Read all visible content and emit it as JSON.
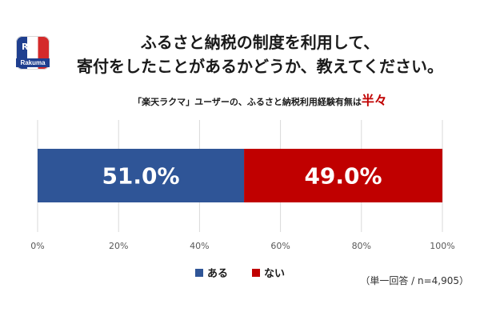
{
  "logo": {
    "letter": "R",
    "brand": "Rakuma"
  },
  "title_line1": "ふるさと納税の制度を利用して、",
  "title_line2": "寄付をしたことがあるかどうか、教えてください。",
  "subtitle_text": "「楽天ラクマ」ユーザーの、ふるさと納税利用経験有無は",
  "subtitle_highlight": "半々",
  "footnote": "（単一回答 / n=4,905）",
  "colors": {
    "aru": "#2f5597",
    "nai": "#c00000"
  },
  "chart_data": {
    "type": "bar",
    "orientation": "horizontal-stacked-100",
    "categories": [
      ""
    ],
    "series": [
      {
        "name": "ある",
        "values": [
          51.0
        ],
        "label": "51.0%"
      },
      {
        "name": "ない",
        "values": [
          49.0
        ],
        "label": "49.0%"
      }
    ],
    "xlim": [
      0,
      100
    ],
    "xticks": [
      "0%",
      "20%",
      "40%",
      "60%",
      "80%",
      "100%"
    ],
    "grid": true,
    "legend_position": "bottom"
  }
}
